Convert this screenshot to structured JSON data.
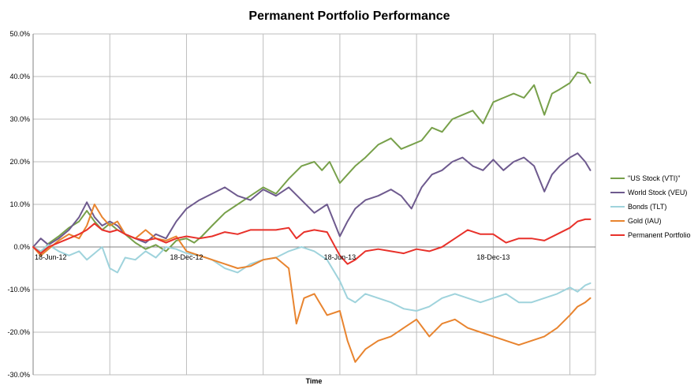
{
  "chart_data": {
    "type": "line",
    "title": "Permanent Portfolio Performance",
    "xlabel": "Time",
    "ylabel": "",
    "ylim": [
      -30,
      50
    ],
    "y_ticks": [
      "-30.0%",
      "-20.0%",
      "-10.0%",
      "0.0%",
      "10.0%",
      "20.0%",
      "30.0%",
      "40.0%",
      "50.0%"
    ],
    "x_tick_labels": [
      "18-Jun-12",
      "18-Dec-12",
      "18-Jun-13",
      "18-Dec-13"
    ],
    "x_range_months": [
      0,
      22
    ],
    "legend_position": "right",
    "grid": true,
    "series": [
      {
        "name": "\"US Stock (VTI)\"",
        "color": "#77a04a",
        "points": [
          [
            0,
            0
          ],
          [
            0.3,
            -1.5
          ],
          [
            0.6,
            0.8
          ],
          [
            1,
            2.5
          ],
          [
            1.4,
            4.5
          ],
          [
            1.8,
            6
          ],
          [
            2.1,
            8.5
          ],
          [
            2.4,
            6
          ],
          [
            2.7,
            4
          ],
          [
            3,
            5.5
          ],
          [
            3.3,
            4
          ],
          [
            3.6,
            3
          ],
          [
            4,
            1
          ],
          [
            4.4,
            -0.5
          ],
          [
            4.8,
            0.5
          ],
          [
            5.2,
            -1
          ],
          [
            5.6,
            1.5
          ],
          [
            6,
            2
          ],
          [
            6.3,
            1
          ],
          [
            6.6,
            2.5
          ],
          [
            7,
            5
          ],
          [
            7.5,
            8
          ],
          [
            8,
            10
          ],
          [
            8.5,
            12
          ],
          [
            9,
            14
          ],
          [
            9.5,
            12.5
          ],
          [
            10,
            16
          ],
          [
            10.5,
            19
          ],
          [
            11,
            20
          ],
          [
            11.3,
            18
          ],
          [
            11.6,
            20
          ],
          [
            12,
            15
          ],
          [
            12.3,
            17
          ],
          [
            12.6,
            19
          ],
          [
            13,
            21
          ],
          [
            13.5,
            24
          ],
          [
            14,
            25.5
          ],
          [
            14.4,
            23
          ],
          [
            14.8,
            24
          ],
          [
            15.2,
            25
          ],
          [
            15.6,
            28
          ],
          [
            16,
            27
          ],
          [
            16.4,
            30
          ],
          [
            16.8,
            31
          ],
          [
            17.2,
            32
          ],
          [
            17.6,
            29
          ],
          [
            18,
            34
          ],
          [
            18.4,
            35
          ],
          [
            18.8,
            36
          ],
          [
            19.2,
            35
          ],
          [
            19.6,
            38
          ],
          [
            20,
            31
          ],
          [
            20.3,
            36
          ],
          [
            20.6,
            37
          ],
          [
            21,
            38.5
          ],
          [
            21.3,
            41
          ],
          [
            21.6,
            40.5
          ],
          [
            21.8,
            38.5
          ]
        ]
      },
      {
        "name": "World Stock (VEU)",
        "color": "#6e5a8e",
        "points": [
          [
            0,
            0
          ],
          [
            0.3,
            2
          ],
          [
            0.6,
            0.5
          ],
          [
            1,
            2
          ],
          [
            1.4,
            4
          ],
          [
            1.8,
            7
          ],
          [
            2.1,
            10.5
          ],
          [
            2.4,
            7
          ],
          [
            2.7,
            5
          ],
          [
            3,
            6
          ],
          [
            3.3,
            5
          ],
          [
            3.6,
            3
          ],
          [
            4,
            2
          ],
          [
            4.4,
            1
          ],
          [
            4.8,
            3
          ],
          [
            5.2,
            2
          ],
          [
            5.6,
            6
          ],
          [
            6,
            9
          ],
          [
            6.5,
            11
          ],
          [
            7,
            12.5
          ],
          [
            7.5,
            14
          ],
          [
            8,
            12
          ],
          [
            8.5,
            11
          ],
          [
            9,
            13.5
          ],
          [
            9.5,
            12
          ],
          [
            10,
            14
          ],
          [
            10.5,
            11
          ],
          [
            11,
            8
          ],
          [
            11.5,
            10
          ],
          [
            12,
            2.5
          ],
          [
            12.3,
            6
          ],
          [
            12.6,
            9
          ],
          [
            13,
            11
          ],
          [
            13.5,
            12
          ],
          [
            14,
            13.5
          ],
          [
            14.4,
            12
          ],
          [
            14.8,
            9
          ],
          [
            15.2,
            14
          ],
          [
            15.6,
            17
          ],
          [
            16,
            18
          ],
          [
            16.4,
            20
          ],
          [
            16.8,
            21
          ],
          [
            17.2,
            19
          ],
          [
            17.6,
            18
          ],
          [
            18,
            20.5
          ],
          [
            18.4,
            18
          ],
          [
            18.8,
            20
          ],
          [
            19.2,
            21
          ],
          [
            19.6,
            19
          ],
          [
            20,
            13
          ],
          [
            20.3,
            17
          ],
          [
            20.6,
            19
          ],
          [
            21,
            21
          ],
          [
            21.3,
            22
          ],
          [
            21.6,
            20
          ],
          [
            21.8,
            18
          ]
        ]
      },
      {
        "name": "Bonds (TLT)",
        "color": "#9fd3dc",
        "points": [
          [
            0,
            0
          ],
          [
            0.3,
            -1
          ],
          [
            0.6,
            0.5
          ],
          [
            1,
            -1
          ],
          [
            1.4,
            -2
          ],
          [
            1.8,
            -1
          ],
          [
            2.1,
            -3
          ],
          [
            2.4,
            -1.5
          ],
          [
            2.7,
            0
          ],
          [
            3,
            -5
          ],
          [
            3.3,
            -6
          ],
          [
            3.6,
            -2.5
          ],
          [
            4,
            -3
          ],
          [
            4.4,
            -1
          ],
          [
            4.8,
            -2.5
          ],
          [
            5.2,
            0
          ],
          [
            5.6,
            -0.5
          ],
          [
            6,
            -1.5
          ],
          [
            6.5,
            -2
          ],
          [
            7,
            -3
          ],
          [
            7.5,
            -5
          ],
          [
            8,
            -6
          ],
          [
            8.5,
            -4
          ],
          [
            9,
            -3
          ],
          [
            9.5,
            -2.5
          ],
          [
            10,
            -1
          ],
          [
            10.5,
            0
          ],
          [
            11,
            -1
          ],
          [
            11.5,
            -3
          ],
          [
            12,
            -8
          ],
          [
            12.3,
            -12
          ],
          [
            12.6,
            -13
          ],
          [
            13,
            -11
          ],
          [
            13.5,
            -12
          ],
          [
            14,
            -13
          ],
          [
            14.5,
            -14.5
          ],
          [
            15,
            -15
          ],
          [
            15.5,
            -14
          ],
          [
            16,
            -12
          ],
          [
            16.5,
            -11
          ],
          [
            17,
            -12
          ],
          [
            17.5,
            -13
          ],
          [
            18,
            -12
          ],
          [
            18.5,
            -11
          ],
          [
            19,
            -13
          ],
          [
            19.5,
            -13
          ],
          [
            20,
            -12
          ],
          [
            20.5,
            -11
          ],
          [
            21,
            -9.5
          ],
          [
            21.3,
            -10.5
          ],
          [
            21.6,
            -9
          ],
          [
            21.8,
            -8.5
          ]
        ]
      },
      {
        "name": "Gold (IAU)",
        "color": "#e8842f",
        "points": [
          [
            0,
            0
          ],
          [
            0.3,
            -2
          ],
          [
            0.6,
            -0.5
          ],
          [
            1,
            1.5
          ],
          [
            1.4,
            3
          ],
          [
            1.8,
            2
          ],
          [
            2.1,
            5
          ],
          [
            2.4,
            10
          ],
          [
            2.7,
            7
          ],
          [
            3,
            5
          ],
          [
            3.3,
            6
          ],
          [
            3.6,
            3
          ],
          [
            4,
            2
          ],
          [
            4.4,
            4
          ],
          [
            4.8,
            2
          ],
          [
            5.2,
            1.5
          ],
          [
            5.6,
            2.5
          ],
          [
            6,
            -1
          ],
          [
            6.5,
            -2
          ],
          [
            7,
            -3
          ],
          [
            7.5,
            -4
          ],
          [
            8,
            -5
          ],
          [
            8.5,
            -4.5
          ],
          [
            9,
            -3
          ],
          [
            9.5,
            -2.5
          ],
          [
            10,
            -5
          ],
          [
            10.3,
            -18
          ],
          [
            10.6,
            -12
          ],
          [
            11,
            -11
          ],
          [
            11.5,
            -16
          ],
          [
            12,
            -15
          ],
          [
            12.3,
            -22
          ],
          [
            12.6,
            -27
          ],
          [
            13,
            -24
          ],
          [
            13.5,
            -22
          ],
          [
            14,
            -21
          ],
          [
            14.5,
            -19
          ],
          [
            15,
            -17
          ],
          [
            15.5,
            -21
          ],
          [
            16,
            -18
          ],
          [
            16.5,
            -17
          ],
          [
            17,
            -19
          ],
          [
            17.5,
            -20
          ],
          [
            18,
            -21
          ],
          [
            18.5,
            -22
          ],
          [
            19,
            -23
          ],
          [
            19.5,
            -22
          ],
          [
            20,
            -21
          ],
          [
            20.5,
            -19
          ],
          [
            21,
            -16
          ],
          [
            21.3,
            -14
          ],
          [
            21.6,
            -13
          ],
          [
            21.8,
            -12
          ]
        ]
      },
      {
        "name": "Permanent Portfolio",
        "color": "#e8312a",
        "points": [
          [
            0,
            0
          ],
          [
            0.3,
            -1.5
          ],
          [
            0.6,
            0
          ],
          [
            1,
            1
          ],
          [
            1.4,
            2
          ],
          [
            1.8,
            3
          ],
          [
            2.1,
            4
          ],
          [
            2.4,
            5.5
          ],
          [
            2.7,
            4
          ],
          [
            3,
            3.5
          ],
          [
            3.3,
            4
          ],
          [
            3.6,
            3
          ],
          [
            4,
            2
          ],
          [
            4.4,
            1.5
          ],
          [
            4.8,
            2
          ],
          [
            5.2,
            1
          ],
          [
            5.6,
            2
          ],
          [
            6,
            2.5
          ],
          [
            6.5,
            2
          ],
          [
            7,
            2.5
          ],
          [
            7.5,
            3.5
          ],
          [
            8,
            3
          ],
          [
            8.5,
            4
          ],
          [
            9,
            4
          ],
          [
            9.5,
            4
          ],
          [
            10,
            4.5
          ],
          [
            10.3,
            2
          ],
          [
            10.6,
            3.5
          ],
          [
            11,
            4
          ],
          [
            11.5,
            3.5
          ],
          [
            12,
            -2
          ],
          [
            12.3,
            -4
          ],
          [
            12.6,
            -3
          ],
          [
            13,
            -1
          ],
          [
            13.5,
            -0.5
          ],
          [
            14,
            -1
          ],
          [
            14.5,
            -1.5
          ],
          [
            15,
            -0.5
          ],
          [
            15.5,
            -1
          ],
          [
            16,
            0
          ],
          [
            16.5,
            2
          ],
          [
            17,
            4
          ],
          [
            17.5,
            3
          ],
          [
            18,
            3
          ],
          [
            18.5,
            1
          ],
          [
            19,
            2
          ],
          [
            19.5,
            2
          ],
          [
            20,
            1.5
          ],
          [
            20.5,
            3
          ],
          [
            21,
            4.5
          ],
          [
            21.3,
            6
          ],
          [
            21.6,
            6.5
          ],
          [
            21.8,
            6.5
          ]
        ]
      }
    ]
  }
}
